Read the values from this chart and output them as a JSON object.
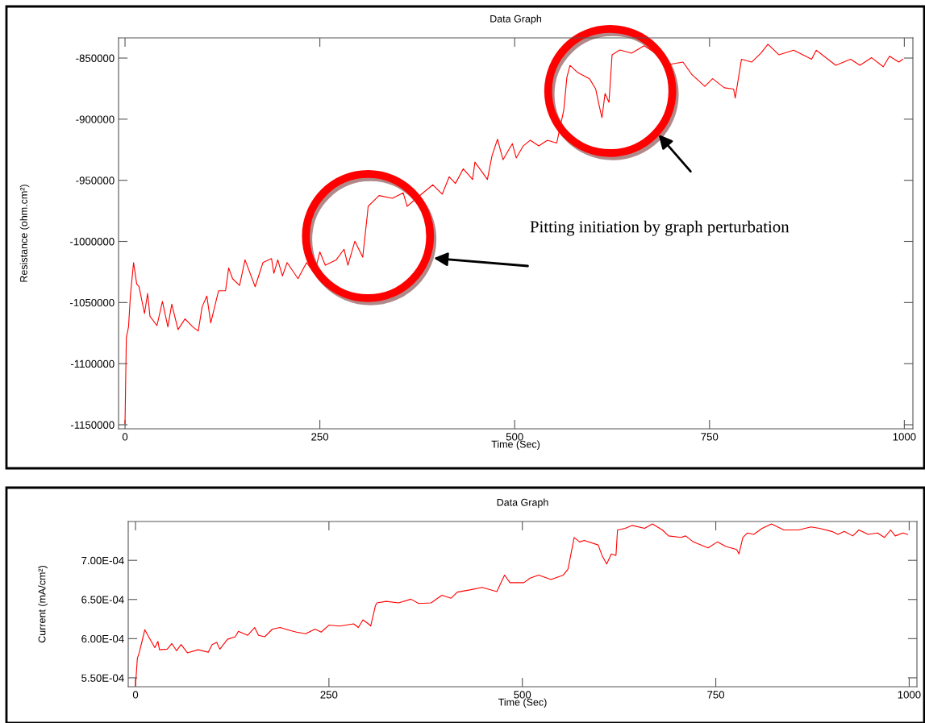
{
  "chart_data": [
    {
      "type": "line",
      "title": "Data Graph",
      "xlabel": "Time (Sec)",
      "ylabel": "Resistance (ohm.cm²)",
      "xlim": [
        -8.3,
        1011
      ],
      "xticks": [
        0,
        250,
        500,
        750,
        1000
      ],
      "ylim": [
        -1153300,
        -833500
      ],
      "yticks": [
        -1150000,
        -1100000,
        -1050000,
        -1000000,
        -950000,
        -900000,
        -850000
      ],
      "grid": false,
      "legend": false,
      "marker": "none",
      "line_style": "solid",
      "annotations": [
        "Pitting initiation by graph perturbation"
      ],
      "x": [
        0,
        1.7,
        4.5,
        7,
        11,
        15,
        18,
        25,
        29,
        32,
        41,
        48,
        55,
        60,
        68,
        77,
        87,
        94,
        99,
        105,
        110,
        120,
        129,
        133,
        138,
        147,
        154,
        167,
        177,
        188,
        191,
        196,
        202,
        208,
        222,
        233,
        243,
        250,
        257,
        271,
        281,
        286,
        295,
        300,
        305,
        311,
        312,
        326,
        343,
        357,
        362,
        374,
        395,
        407,
        416,
        424,
        434,
        446,
        449,
        465,
        471,
        478,
        485,
        497,
        502,
        511,
        520,
        531,
        542,
        554,
        558,
        563,
        567,
        571,
        581,
        596,
        604,
        608,
        612,
        616,
        621,
        625,
        635,
        650,
        666,
        681,
        692,
        716,
        727,
        744,
        754,
        769,
        781,
        783,
        791,
        804,
        816,
        825,
        839,
        858,
        881,
        887,
        912,
        931,
        943,
        958,
        973,
        981,
        993,
        998
      ],
      "series": [
        {
          "color": "#ff0000",
          "values": [
            -1149000,
            -1078700,
            -1070000,
            -1043600,
            -1017300,
            -1034900,
            -1037000,
            -1059000,
            -1042500,
            -1061200,
            -1068900,
            -1049100,
            -1070000,
            -1051300,
            -1072100,
            -1063400,
            -1070000,
            -1073300,
            -1053500,
            -1044700,
            -1066700,
            -1040400,
            -1040400,
            -1021700,
            -1030500,
            -1036000,
            -1015100,
            -1037100,
            -1017300,
            -1014000,
            -1026100,
            -1015100,
            -1028300,
            -1017300,
            -1030500,
            -1017300,
            -1026100,
            -1008600,
            -1019500,
            -1015100,
            -1006400,
            -1019500,
            -999800,
            -1006400,
            -1012900,
            -977900,
            -971300,
            -962500,
            -964700,
            -960300,
            -971300,
            -964700,
            -953700,
            -961400,
            -947100,
            -952600,
            -940600,
            -949300,
            -935100,
            -949300,
            -929700,
            -916400,
            -933200,
            -920000,
            -931700,
            -921900,
            -917200,
            -921900,
            -917200,
            -919500,
            -907400,
            -892600,
            -865700,
            -856000,
            -861900,
            -866900,
            -875400,
            -887600,
            -898800,
            -879000,
            -886300,
            -847400,
            -843400,
            -846000,
            -839900,
            -846000,
            -855900,
            -853300,
            -863200,
            -873100,
            -866900,
            -874300,
            -875400,
            -882800,
            -851000,
            -853300,
            -846000,
            -838700,
            -847300,
            -843600,
            -851000,
            -843600,
            -855900,
            -851000,
            -855900,
            -849700,
            -857100,
            -848500,
            -853300,
            -851000
          ]
        }
      ]
    },
    {
      "type": "line",
      "title": "Data Graph",
      "xlabel": "Time (Sec)",
      "ylabel": "Current (mA/cm²)",
      "xlim": [
        -9.4,
        1010
      ],
      "xticks": [
        0,
        250,
        500,
        750,
        1000
      ],
      "ylim": [
        0.0005386,
        0.0007496
      ],
      "yticks": [
        {
          "value": 0.00055,
          "label": "5.50E-04"
        },
        {
          "value": 0.0006,
          "label": "6.00E-04"
        },
        {
          "value": 0.00065,
          "label": "6.50E-04"
        },
        {
          "value": 0.0007,
          "label": "7.00E-04"
        }
      ],
      "grid": false,
      "legend": false,
      "marker": "none",
      "line_style": "solid",
      "x": [
        0,
        2.4,
        5,
        8.4,
        12,
        17,
        25,
        29,
        31,
        41,
        47,
        53,
        59,
        67,
        81,
        94,
        99,
        105,
        109,
        119,
        129,
        133,
        145,
        154,
        159,
        167,
        177,
        187,
        198,
        208,
        220,
        232,
        240,
        250,
        264,
        282,
        288,
        294,
        302,
        304,
        310,
        312,
        324,
        340,
        356,
        366,
        382,
        396,
        408,
        416,
        432,
        448,
        467,
        477,
        484,
        502,
        510,
        521,
        537,
        553,
        559,
        567,
        574,
        580,
        598,
        603,
        609,
        615,
        621,
        623,
        633,
        642,
        658,
        668,
        681,
        689,
        705,
        711,
        721,
        740,
        752,
        763,
        777,
        780,
        785,
        791,
        799,
        810,
        822,
        838,
        857,
        873,
        884,
        900,
        908,
        916,
        927,
        935,
        947,
        959,
        968,
        976,
        982,
        992,
        998
      ],
      "series": [
        {
          "color": "#ff0000",
          "values": [
            0.00054,
            0.0005748,
            0.0005827,
            0.0005965,
            0.0006114,
            0.0006024,
            0.0005886,
            0.0005965,
            0.0005858,
            0.0005866,
            0.0005937,
            0.0005846,
            0.0005925,
            0.0005819,
            0.0005858,
            0.0005827,
            0.0005925,
            0.0005953,
            0.0005866,
            0.0005992,
            0.0006024,
            0.0006094,
            0.0006043,
            0.0006142,
            0.0006043,
            0.0006024,
            0.0006122,
            0.0006142,
            0.000611,
            0.0006083,
            0.0006063,
            0.0006122,
            0.0006083,
            0.0006173,
            0.0006161,
            0.0006189,
            0.0006142,
            0.000624,
            0.0006181,
            0.0006161,
            0.0006417,
            0.0006457,
            0.0006476,
            0.0006457,
            0.0006504,
            0.0006449,
            0.0006457,
            0.0006555,
            0.0006516,
            0.0006594,
            0.0006622,
            0.0006654,
            0.00066,
            0.0006812,
            0.0006715,
            0.0006715,
            0.0006773,
            0.0006812,
            0.0006754,
            0.0006812,
            0.0006888,
            0.0007292,
            0.0007235,
            0.0007254,
            0.0007196,
            0.0007062,
            0.0006954,
            0.0007081,
            0.0007062,
            0.0007388,
            0.0007408,
            0.0007446,
            0.0007408,
            0.0007465,
            0.0007388,
            0.0007312,
            0.0007292,
            0.0007312,
            0.0007235,
            0.0007158,
            0.0007235,
            0.0007177,
            0.0007138,
            0.0007081,
            0.0007292,
            0.000735,
            0.0007331,
            0.0007408,
            0.0007465,
            0.0007388,
            0.0007388,
            0.0007427,
            0.0007408,
            0.0007369,
            0.0007331,
            0.0007369,
            0.0007312,
            0.0007388,
            0.0007331,
            0.000735,
            0.0007292,
            0.0007388,
            0.0007312,
            0.000735,
            0.0007331
          ]
        }
      ]
    }
  ]
}
